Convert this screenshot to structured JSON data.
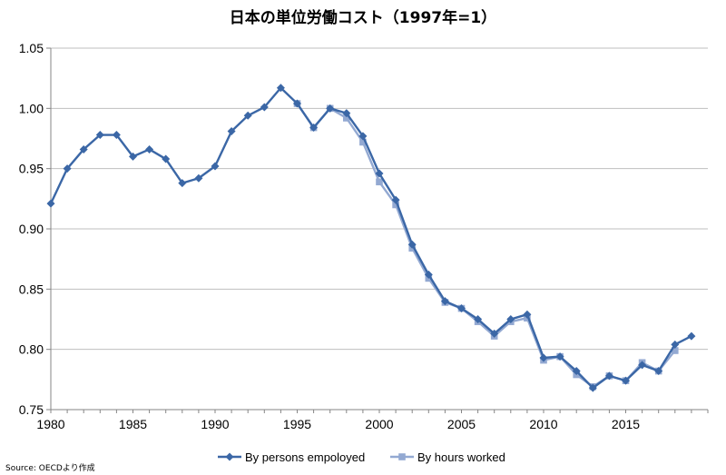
{
  "chart_data": {
    "type": "line",
    "title": "日本の単位労働コスト（1997年=1）",
    "source": "Source: OECDより作成",
    "xlim": [
      1980,
      2020
    ],
    "ylim": [
      0.75,
      1.05
    ],
    "x_ticks": [
      "1980",
      "1985",
      "1990",
      "1995",
      "2000",
      "2005",
      "2010",
      "2015"
    ],
    "y_ticks": [
      "0.75",
      "0.80",
      "0.85",
      "0.90",
      "0.95",
      "1.00",
      "1.05"
    ],
    "grid": "horizontal",
    "legend_position": "bottom",
    "series": [
      {
        "name": "By persons empoloyed",
        "color": "#3b67a6",
        "marker": "diamond",
        "points": [
          [
            1980,
            0.921
          ],
          [
            1981,
            0.95
          ],
          [
            1982,
            0.966
          ],
          [
            1983,
            0.978
          ],
          [
            1984,
            0.978
          ],
          [
            1985,
            0.96
          ],
          [
            1986,
            0.966
          ],
          [
            1987,
            0.958
          ],
          [
            1988,
            0.938
          ],
          [
            1989,
            0.942
          ],
          [
            1990,
            0.952
          ],
          [
            1991,
            0.981
          ],
          [
            1992,
            0.994
          ],
          [
            1993,
            1.001
          ],
          [
            1994,
            1.017
          ],
          [
            1995,
            1.004
          ],
          [
            1996,
            0.984
          ],
          [
            1997,
            1.0
          ],
          [
            1998,
            0.996
          ],
          [
            1999,
            0.977
          ],
          [
            2000,
            0.946
          ],
          [
            2001,
            0.924
          ],
          [
            2002,
            0.887
          ],
          [
            2003,
            0.862
          ],
          [
            2004,
            0.84
          ],
          [
            2005,
            0.834
          ],
          [
            2006,
            0.825
          ],
          [
            2007,
            0.813
          ],
          [
            2008,
            0.825
          ],
          [
            2009,
            0.829
          ],
          [
            2010,
            0.793
          ],
          [
            2011,
            0.794
          ],
          [
            2012,
            0.782
          ],
          [
            2013,
            0.768
          ],
          [
            2014,
            0.778
          ],
          [
            2015,
            0.774
          ],
          [
            2016,
            0.787
          ],
          [
            2017,
            0.782
          ],
          [
            2018,
            0.804
          ],
          [
            2019,
            0.811
          ]
        ]
      },
      {
        "name": "By hours worked",
        "color": "#93a9d2",
        "marker": "square",
        "points": [
          [
            1995,
            1.004
          ],
          [
            1996,
            0.984
          ],
          [
            1997,
            1.0
          ],
          [
            1998,
            0.992
          ],
          [
            1999,
            0.972
          ],
          [
            2000,
            0.939
          ],
          [
            2001,
            0.92
          ],
          [
            2002,
            0.884
          ],
          [
            2003,
            0.859
          ],
          [
            2004,
            0.839
          ],
          [
            2005,
            0.834
          ],
          [
            2006,
            0.823
          ],
          [
            2007,
            0.811
          ],
          [
            2008,
            0.823
          ],
          [
            2009,
            0.826
          ],
          [
            2010,
            0.791
          ],
          [
            2011,
            0.794
          ],
          [
            2012,
            0.779
          ],
          [
            2013,
            0.769
          ],
          [
            2014,
            0.778
          ],
          [
            2015,
            0.774
          ],
          [
            2016,
            0.789
          ],
          [
            2017,
            0.782
          ],
          [
            2018,
            0.799
          ]
        ]
      }
    ]
  }
}
